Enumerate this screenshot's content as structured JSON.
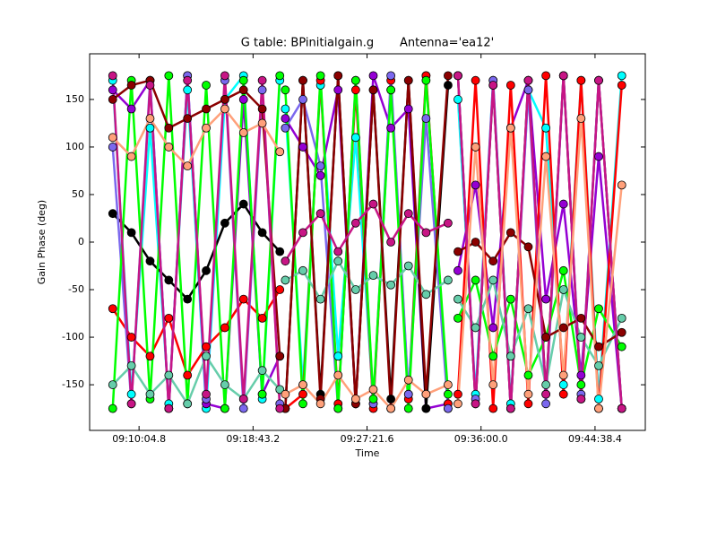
{
  "chart_data": {
    "type": "line",
    "title": "G table: BPinitialgain.g       Antenna='ea12'",
    "x_label": "Time",
    "y_label": "Gain Phase (deg)",
    "x": [
      "09:08:05",
      "09:09:30",
      "09:10:55",
      "09:12:20",
      "09:13:45",
      "09:15:10",
      "09:16:35",
      "09:18:00",
      "09:19:25",
      "09:20:45",
      "09:20:55",
      "09:21:10",
      "09:22:30",
      "09:23:50",
      "09:25:10",
      "09:26:30",
      "09:27:50",
      "09:29:10",
      "09:30:30",
      "09:31:50",
      "09:33:30",
      "09:33:50",
      "09:34:15",
      "09:35:35",
      "09:36:55",
      "09:38:15",
      "09:39:35",
      "09:40:55",
      "09:42:15",
      "09:43:35",
      "09:44:55",
      "09:46:40"
    ],
    "xlim": [
      "09:06:20",
      "09:48:27"
    ],
    "xticks": [
      "09:10:04.8",
      "09:18:43.2",
      "09:27:21.6",
      "09:36:00.0",
      "09:44:38.4"
    ],
    "ylim": [
      -198,
      198
    ],
    "yticks": [
      -150,
      -100,
      -50,
      0,
      50,
      100,
      150
    ],
    "series": [
      {
        "color": "#00ffff",
        "values": [
          170,
          -160,
          120,
          -170,
          160,
          -175,
          150,
          175,
          -165,
          170,
          null,
          140,
          -150,
          165,
          -120,
          110,
          -170,
          160,
          -160,
          175,
          -175,
          null,
          150,
          -160,
          170,
          -170,
          160,
          120,
          -150,
          170,
          -165,
          175
        ]
      },
      {
        "color": "#9400d3",
        "values": [
          160,
          140,
          170,
          -175,
          175,
          -170,
          -175,
          150,
          -160,
          -120,
          null,
          130,
          100,
          70,
          160,
          -170,
          175,
          120,
          140,
          -175,
          -170,
          null,
          -30,
          60,
          -90,
          120,
          170,
          -60,
          40,
          -140,
          90,
          -175
        ]
      },
      {
        "color": "#000000",
        "values": [
          30,
          10,
          -20,
          -40,
          -60,
          -30,
          20,
          40,
          10,
          -10,
          null,
          -175,
          170,
          -160,
          175,
          -170,
          160,
          -165,
          170,
          -175,
          165,
          null,
          175,
          -170,
          165,
          -175,
          170,
          -160,
          175,
          -165,
          170,
          -175
        ]
      },
      {
        "color": "#ff0000",
        "values": [
          -70,
          -100,
          -120,
          -80,
          -140,
          -110,
          -90,
          -60,
          -80,
          -50,
          null,
          -175,
          -160,
          170,
          -170,
          160,
          -175,
          170,
          -165,
          175,
          -170,
          null,
          -160,
          170,
          -175,
          165,
          -170,
          175,
          -160,
          170,
          -175,
          165
        ]
      },
      {
        "color": "#7b68ee",
        "values": [
          100,
          -170,
          170,
          -175,
          175,
          -165,
          170,
          -175,
          160,
          -170,
          null,
          120,
          150,
          80,
          -175,
          170,
          -170,
          175,
          -160,
          130,
          -175,
          null,
          175,
          -165,
          170,
          -175,
          160,
          -170,
          175,
          -160,
          170,
          -175
        ]
      },
      {
        "color": "#00ff00",
        "values": [
          -175,
          170,
          -165,
          175,
          -170,
          165,
          -175,
          170,
          -160,
          175,
          null,
          160,
          -170,
          175,
          -175,
          170,
          -165,
          160,
          -175,
          170,
          -160,
          null,
          -80,
          -40,
          -120,
          -60,
          -140,
          -100,
          -30,
          -150,
          -70,
          -110
        ]
      },
      {
        "color": "#66cdaa",
        "values": [
          -150,
          -130,
          -160,
          -140,
          -170,
          -120,
          -150,
          -165,
          -135,
          -155,
          null,
          -40,
          -30,
          -60,
          -20,
          -50,
          -35,
          -45,
          -25,
          -55,
          -40,
          null,
          -60,
          -90,
          -40,
          -120,
          -70,
          -150,
          -50,
          -100,
          -130,
          -80
        ]
      },
      {
        "color": "#8b0000",
        "values": [
          150,
          165,
          170,
          120,
          130,
          140,
          150,
          160,
          140,
          -120,
          null,
          -175,
          170,
          -165,
          175,
          -170,
          160,
          -175,
          170,
          -160,
          175,
          null,
          -10,
          0,
          -20,
          10,
          -5,
          -100,
          -90,
          -80,
          -110,
          -95
        ]
      },
      {
        "color": "#c71585",
        "values": [
          175,
          -170,
          165,
          -175,
          170,
          -160,
          175,
          -165,
          170,
          -175,
          null,
          -20,
          10,
          30,
          -10,
          20,
          40,
          0,
          30,
          10,
          20,
          null,
          175,
          -170,
          165,
          -175,
          170,
          -160,
          175,
          -165,
          170,
          -175
        ]
      },
      {
        "color": "#ffa07a",
        "values": [
          110,
          90,
          130,
          100,
          80,
          120,
          140,
          115,
          125,
          95,
          null,
          -160,
          -150,
          -170,
          -140,
          -165,
          -155,
          -175,
          -145,
          -160,
          -150,
          null,
          -170,
          100,
          -150,
          120,
          -160,
          90,
          -140,
          130,
          -175,
          60
        ]
      }
    ]
  }
}
